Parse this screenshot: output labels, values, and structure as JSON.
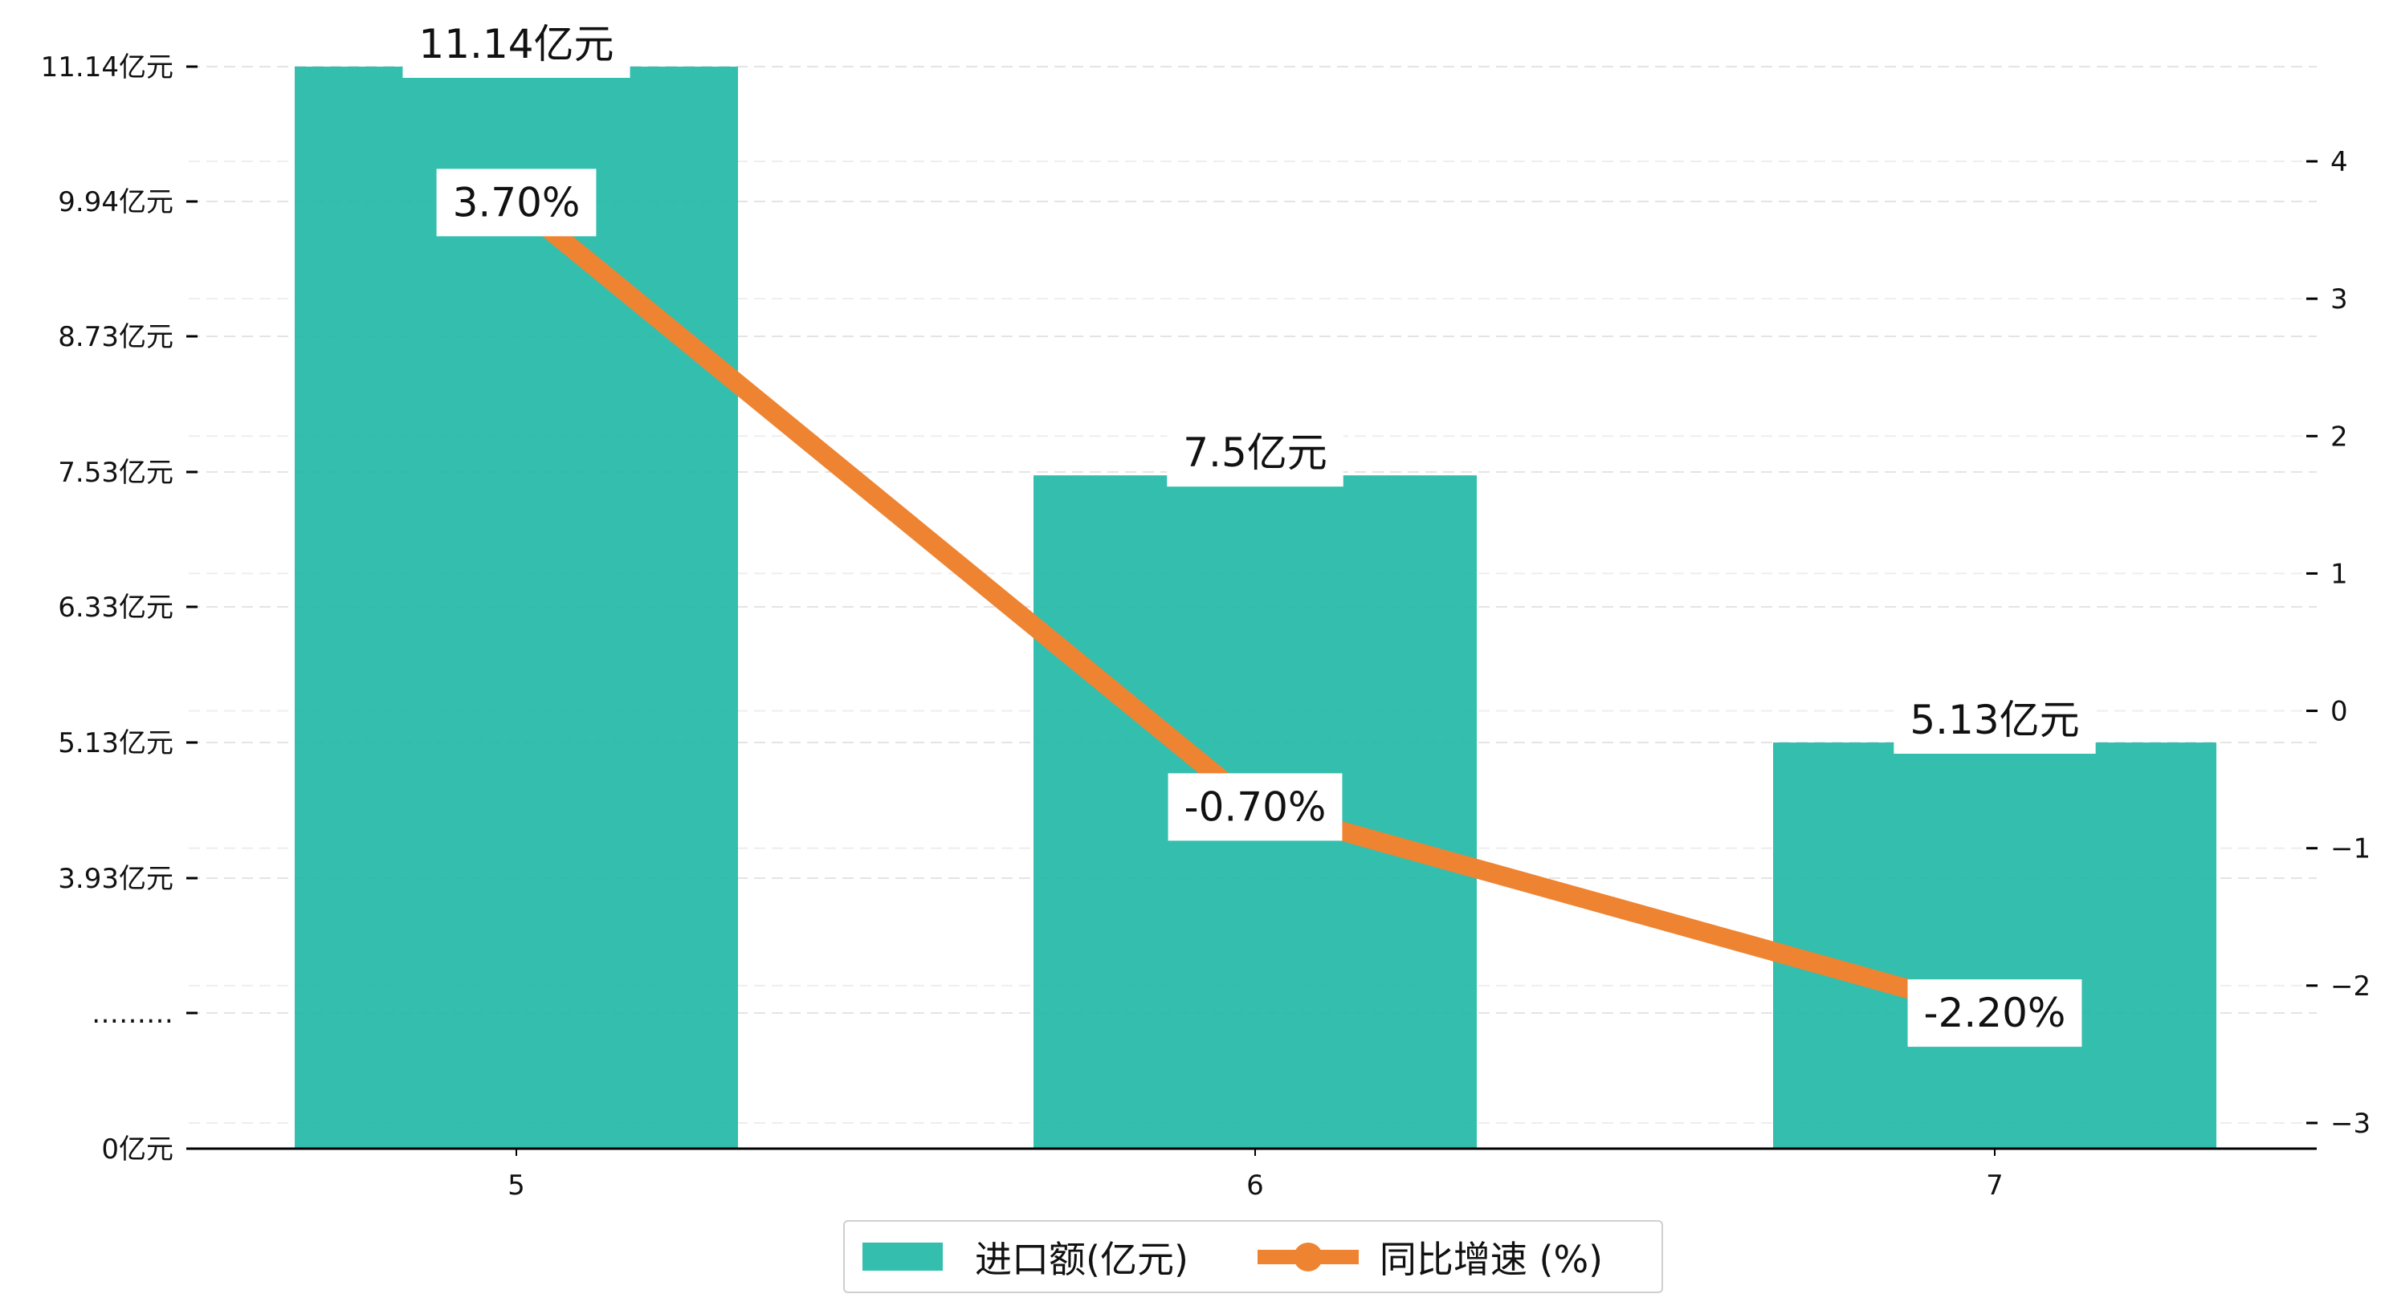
{
  "chart_data": {
    "type": "bar",
    "categories": [
      "5",
      "6",
      "7"
    ],
    "series": [
      {
        "name": "进口额(亿元)",
        "kind": "bar",
        "axis": "left",
        "values": [
          11.14,
          7.5,
          5.13
        ],
        "labels": [
          "11.14亿元",
          "7.5亿元",
          "5.13亿元"
        ],
        "color": "#1fb8a6"
      },
      {
        "name": "同比增速 (%)",
        "kind": "line",
        "axis": "right",
        "values": [
          3.7,
          -0.7,
          -2.2
        ],
        "labels": [
          "3.70%",
          "-0.70%",
          "-2.20%"
        ],
        "color": "#ee8432"
      }
    ],
    "y_left": {
      "ticks": [
        {
          "value": 0,
          "label": "0亿元"
        },
        {
          "value": 1.5,
          "label": "………"
        },
        {
          "value": 3.93,
          "label": "3.93亿元"
        },
        {
          "value": 5.13,
          "label": "5.13亿元"
        },
        {
          "value": 6.33,
          "label": "6.33亿元"
        },
        {
          "value": 7.53,
          "label": "7.53亿元"
        },
        {
          "value": 8.73,
          "label": "8.73亿元"
        },
        {
          "value": 9.94,
          "label": "9.94亿元"
        },
        {
          "value": 11.14,
          "label": "11.14亿元"
        }
      ]
    },
    "y_right": {
      "ylim": [
        -3.3,
        4.55
      ],
      "ticks": [
        -3,
        -2,
        -1,
        0,
        1,
        2,
        3,
        4
      ]
    },
    "grid": true,
    "legend_position": "bottom-center"
  }
}
